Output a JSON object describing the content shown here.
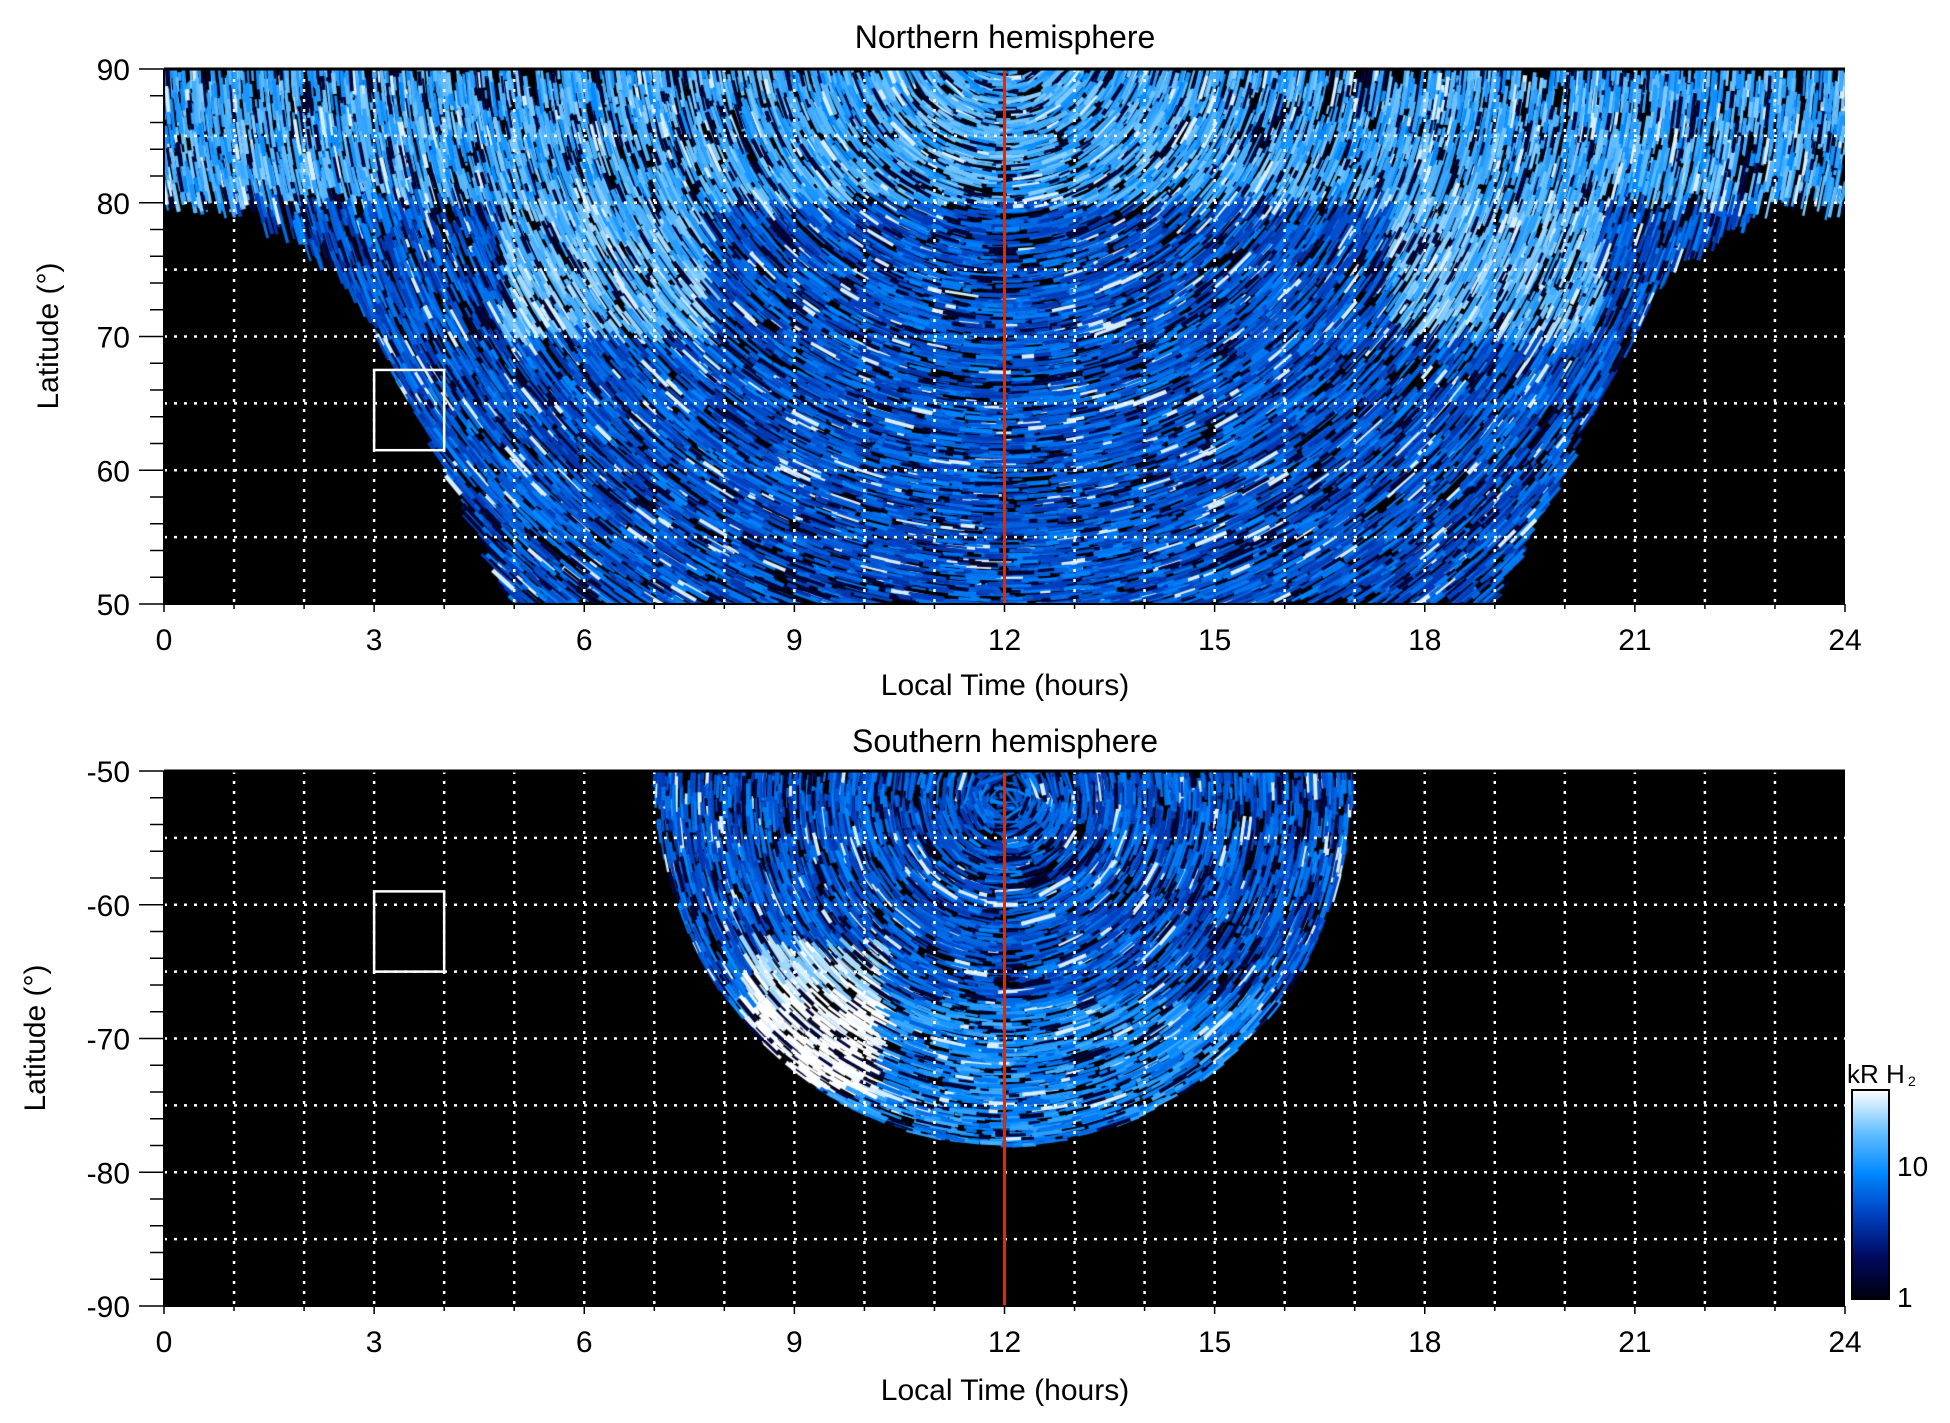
{
  "chart_data": [
    {
      "type": "heatmap",
      "title": "Northern hemisphere",
      "xlabel": "Local Time (hours)",
      "ylabel": "Latitude (°)",
      "xlim": [
        0,
        24
      ],
      "ylim": [
        50,
        90
      ],
      "xticks": [
        "0",
        "3",
        "6",
        "9",
        "12",
        "15",
        "18",
        "21",
        "24"
      ],
      "yticks": [
        "50",
        "60",
        "70",
        "80",
        "90"
      ],
      "grid": true,
      "reference_line_lt": 12,
      "reference_line_color": "#d03010",
      "box": {
        "lt": [
          3,
          4
        ],
        "lat": [
          61.5,
          67.5
        ]
      },
      "emission_extent": {
        "polar_cap_lat": 80,
        "lt_at_50": [
          5,
          19
        ],
        "lt_at_75": [
          2.5,
          21.5
        ]
      }
    },
    {
      "type": "heatmap",
      "title": "Southern hemisphere",
      "xlabel": "Local Time (hours)",
      "ylabel": "Latitude (°)",
      "xlim": [
        0,
        24
      ],
      "ylim": [
        -90,
        -50
      ],
      "xticks": [
        "0",
        "3",
        "6",
        "9",
        "12",
        "15",
        "18",
        "21",
        "24"
      ],
      "yticks": [
        "-50",
        "-60",
        "-70",
        "-80",
        "-90"
      ],
      "grid": true,
      "reference_line_lt": 12,
      "reference_line_color": "#d03010",
      "box": {
        "lt": [
          3,
          4
        ],
        "lat": [
          -65,
          -59
        ]
      },
      "emission_extent": {
        "lt_at_-50": [
          7,
          17
        ],
        "min_lat_at_12": -78
      }
    }
  ],
  "colorbar": {
    "label": "kR H",
    "label_sub": "2",
    "scale": "log",
    "range": [
      1,
      30
    ],
    "ticks": [
      "1",
      "10"
    ],
    "colors": [
      "#000010",
      "#000a60",
      "#0040c0",
      "#0088ff",
      "#66c0ff",
      "#ffffff"
    ]
  }
}
